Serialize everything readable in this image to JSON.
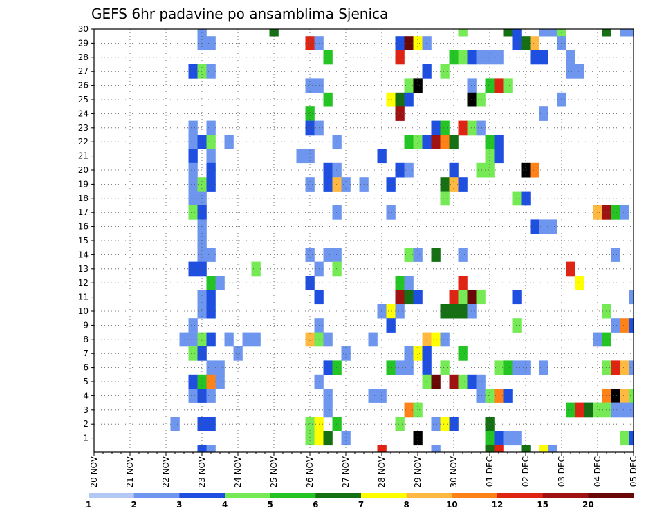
{
  "chart_data": {
    "type": "heatmap",
    "title": "GEFS 6hr padavine po ansamblima Sjenica",
    "x_tick_labels": [
      "20 NOV",
      "21 NOV",
      "22 NOV",
      "23 NOV",
      "24 NOV",
      "25 NOV",
      "26 NOV",
      "27 NOV",
      "28 NOV",
      "29 NOV",
      "30 NOV",
      "01 DEC",
      "02 DEC",
      "03 DEC",
      "04 DEC",
      "05 DEC"
    ],
    "y_tick_labels": [
      "1",
      "2",
      "3",
      "4",
      "5",
      "6",
      "7",
      "8",
      "9",
      "10",
      "11",
      "12",
      "13",
      "14",
      "15",
      "16",
      "17",
      "18",
      "19",
      "20",
      "21",
      "22",
      "23",
      "24",
      "25",
      "26",
      "27",
      "28",
      "29",
      "30"
    ],
    "n_time_steps": 61,
    "n_members": 31,
    "grid": true,
    "legend": "colorbar-bottom",
    "colorbar": {
      "labels": [
        "1",
        "2",
        "3",
        "4",
        "5",
        "6",
        "7",
        "8",
        "10",
        "12",
        "15",
        "20"
      ],
      "colors": [
        "#b4c8f5",
        "#6e96ee",
        "#1f4fe0",
        "#76ea55",
        "#23c423",
        "#157014",
        "#ffff00",
        "#ffb840",
        "#ff8218",
        "#e02414",
        "#a01212",
        "#6a0808"
      ]
    },
    "cells": [
      [
        12,
        30,
        1
      ],
      [
        20,
        30,
        5
      ],
      [
        41,
        30,
        3
      ],
      [
        46,
        30,
        5
      ],
      [
        47,
        30,
        2
      ],
      [
        50,
        30,
        1
      ],
      [
        51,
        30,
        1
      ],
      [
        52,
        30,
        3
      ],
      [
        57,
        30,
        5
      ],
      [
        59,
        30,
        1
      ],
      [
        60,
        30,
        1
      ],
      [
        12,
        29,
        1
      ],
      [
        13,
        29,
        1
      ],
      [
        24,
        29,
        9
      ],
      [
        25,
        29,
        1
      ],
      [
        34,
        29,
        2
      ],
      [
        35,
        29,
        11
      ],
      [
        36,
        29,
        6
      ],
      [
        37,
        29,
        1
      ],
      [
        47,
        29,
        2
      ],
      [
        48,
        29,
        5
      ],
      [
        49,
        29,
        7
      ],
      [
        52,
        29,
        1
      ],
      [
        26,
        28,
        4
      ],
      [
        34,
        28,
        9
      ],
      [
        40,
        28,
        4
      ],
      [
        41,
        28,
        3
      ],
      [
        42,
        28,
        2
      ],
      [
        43,
        28,
        1
      ],
      [
        44,
        28,
        1
      ],
      [
        45,
        28,
        1
      ],
      [
        49,
        28,
        2
      ],
      [
        50,
        28,
        2
      ],
      [
        53,
        28,
        1
      ],
      [
        11,
        27,
        2
      ],
      [
        12,
        27,
        3
      ],
      [
        13,
        27,
        1
      ],
      [
        37,
        27,
        2
      ],
      [
        39,
        27,
        3
      ],
      [
        53,
        27,
        1
      ],
      [
        54,
        27,
        1
      ],
      [
        24,
        26,
        1
      ],
      [
        25,
        26,
        1
      ],
      [
        35,
        26,
        3
      ],
      [
        36,
        26,
        12
      ],
      [
        42,
        26,
        1
      ],
      [
        44,
        26,
        4
      ],
      [
        45,
        26,
        9
      ],
      [
        46,
        26,
        3
      ],
      [
        26,
        25,
        4
      ],
      [
        33,
        25,
        6
      ],
      [
        34,
        25,
        5
      ],
      [
        35,
        25,
        2
      ],
      [
        42,
        25,
        12
      ],
      [
        43,
        25,
        3
      ],
      [
        52,
        25,
        1
      ],
      [
        24,
        24,
        4
      ],
      [
        34,
        24,
        10
      ],
      [
        50,
        24,
        1
      ],
      [
        11,
        23,
        1
      ],
      [
        13,
        23,
        1
      ],
      [
        24,
        23,
        2
      ],
      [
        25,
        23,
        1
      ],
      [
        38,
        23,
        2
      ],
      [
        39,
        23,
        4
      ],
      [
        41,
        23,
        9
      ],
      [
        42,
        23,
        3
      ],
      [
        43,
        23,
        1
      ],
      [
        11,
        22,
        1
      ],
      [
        12,
        22,
        2
      ],
      [
        13,
        22,
        3
      ],
      [
        15,
        22,
        1
      ],
      [
        27,
        22,
        1
      ],
      [
        35,
        22,
        4
      ],
      [
        36,
        22,
        3
      ],
      [
        37,
        22,
        2
      ],
      [
        38,
        22,
        10
      ],
      [
        39,
        22,
        8
      ],
      [
        40,
        22,
        5
      ],
      [
        44,
        22,
        4
      ],
      [
        45,
        22,
        2
      ],
      [
        11,
        21,
        2
      ],
      [
        13,
        21,
        1
      ],
      [
        23,
        21,
        1
      ],
      [
        24,
        21,
        1
      ],
      [
        32,
        21,
        2
      ],
      [
        44,
        21,
        3
      ],
      [
        45,
        21,
        2
      ],
      [
        11,
        20,
        1
      ],
      [
        13,
        20,
        2
      ],
      [
        26,
        20,
        2
      ],
      [
        27,
        20,
        1
      ],
      [
        34,
        20,
        2
      ],
      [
        35,
        20,
        1
      ],
      [
        40,
        20,
        2
      ],
      [
        43,
        20,
        3
      ],
      [
        44,
        20,
        3
      ],
      [
        48,
        20,
        12
      ],
      [
        49,
        20,
        8
      ],
      [
        11,
        19,
        1
      ],
      [
        12,
        19,
        3
      ],
      [
        13,
        19,
        2
      ],
      [
        24,
        19,
        1
      ],
      [
        26,
        19,
        2
      ],
      [
        27,
        19,
        7
      ],
      [
        28,
        19,
        1
      ],
      [
        30,
        19,
        1
      ],
      [
        33,
        19,
        2
      ],
      [
        39,
        19,
        5
      ],
      [
        40,
        19,
        7
      ],
      [
        41,
        19,
        2
      ],
      [
        11,
        18,
        1
      ],
      [
        12,
        18,
        1
      ],
      [
        39,
        18,
        3
      ],
      [
        47,
        18,
        3
      ],
      [
        48,
        18,
        2
      ],
      [
        11,
        17,
        3
      ],
      [
        12,
        17,
        2
      ],
      [
        27,
        17,
        1
      ],
      [
        33,
        17,
        1
      ],
      [
        56,
        17,
        7
      ],
      [
        57,
        17,
        10
      ],
      [
        58,
        17,
        4
      ],
      [
        59,
        17,
        1
      ],
      [
        12,
        16,
        1
      ],
      [
        49,
        16,
        2
      ],
      [
        50,
        16,
        1
      ],
      [
        51,
        16,
        1
      ],
      [
        12,
        15,
        1
      ],
      [
        12,
        14,
        1
      ],
      [
        13,
        14,
        1
      ],
      [
        24,
        14,
        1
      ],
      [
        26,
        14,
        1
      ],
      [
        27,
        14,
        1
      ],
      [
        35,
        14,
        3
      ],
      [
        36,
        14,
        1
      ],
      [
        38,
        14,
        5
      ],
      [
        41,
        14,
        1
      ],
      [
        58,
        14,
        1
      ],
      [
        11,
        13,
        2
      ],
      [
        12,
        13,
        2
      ],
      [
        18,
        13,
        3
      ],
      [
        25,
        13,
        1
      ],
      [
        27,
        13,
        3
      ],
      [
        53,
        13,
        9
      ],
      [
        13,
        12,
        4
      ],
      [
        14,
        12,
        1
      ],
      [
        24,
        12,
        2
      ],
      [
        34,
        12,
        4
      ],
      [
        35,
        12,
        1
      ],
      [
        41,
        12,
        9
      ],
      [
        54,
        12,
        6
      ],
      [
        12,
        11,
        1
      ],
      [
        13,
        11,
        2
      ],
      [
        25,
        11,
        2
      ],
      [
        34,
        11,
        10
      ],
      [
        35,
        11,
        5
      ],
      [
        36,
        11,
        2
      ],
      [
        40,
        11,
        9
      ],
      [
        41,
        11,
        3
      ],
      [
        42,
        11,
        11
      ],
      [
        43,
        11,
        3
      ],
      [
        47,
        11,
        2
      ],
      [
        60,
        11,
        1
      ],
      [
        12,
        10,
        1
      ],
      [
        13,
        10,
        2
      ],
      [
        32,
        10,
        1
      ],
      [
        33,
        10,
        6
      ],
      [
        34,
        10,
        1
      ],
      [
        39,
        10,
        5
      ],
      [
        40,
        10,
        5
      ],
      [
        41,
        10,
        5
      ],
      [
        42,
        10,
        1
      ],
      [
        57,
        10,
        3
      ],
      [
        11,
        9,
        1
      ],
      [
        25,
        9,
        1
      ],
      [
        33,
        9,
        2
      ],
      [
        47,
        9,
        3
      ],
      [
        58,
        9,
        1
      ],
      [
        59,
        9,
        8
      ],
      [
        60,
        9,
        2
      ],
      [
        10,
        8,
        1
      ],
      [
        11,
        8,
        1
      ],
      [
        12,
        8,
        3
      ],
      [
        13,
        8,
        2
      ],
      [
        15,
        8,
        1
      ],
      [
        17,
        8,
        1
      ],
      [
        18,
        8,
        1
      ],
      [
        24,
        8,
        7
      ],
      [
        25,
        8,
        3
      ],
      [
        26,
        8,
        1
      ],
      [
        31,
        8,
        1
      ],
      [
        37,
        8,
        7
      ],
      [
        38,
        8,
        6
      ],
      [
        39,
        8,
        1
      ],
      [
        56,
        8,
        1
      ],
      [
        57,
        8,
        4
      ],
      [
        11,
        7,
        3
      ],
      [
        12,
        7,
        2
      ],
      [
        16,
        7,
        1
      ],
      [
        28,
        7,
        1
      ],
      [
        35,
        7,
        1
      ],
      [
        36,
        7,
        6
      ],
      [
        37,
        7,
        2
      ],
      [
        41,
        7,
        4
      ],
      [
        13,
        6,
        1
      ],
      [
        14,
        6,
        1
      ],
      [
        26,
        6,
        2
      ],
      [
        27,
        6,
        4
      ],
      [
        33,
        6,
        4
      ],
      [
        34,
        6,
        1
      ],
      [
        35,
        6,
        1
      ],
      [
        37,
        6,
        2
      ],
      [
        39,
        6,
        3
      ],
      [
        45,
        6,
        3
      ],
      [
        46,
        6,
        4
      ],
      [
        47,
        6,
        1
      ],
      [
        48,
        6,
        1
      ],
      [
        50,
        6,
        1
      ],
      [
        57,
        6,
        3
      ],
      [
        58,
        6,
        9
      ],
      [
        59,
        6,
        7
      ],
      [
        60,
        6,
        1
      ],
      [
        11,
        5,
        2
      ],
      [
        12,
        5,
        4
      ],
      [
        13,
        5,
        8
      ],
      [
        14,
        5,
        1
      ],
      [
        25,
        5,
        1
      ],
      [
        37,
        5,
        3
      ],
      [
        38,
        5,
        11
      ],
      [
        40,
        5,
        10
      ],
      [
        41,
        5,
        3
      ],
      [
        42,
        5,
        2
      ],
      [
        43,
        5,
        1
      ],
      [
        11,
        4,
        1
      ],
      [
        12,
        4,
        2
      ],
      [
        13,
        4,
        1
      ],
      [
        26,
        4,
        1
      ],
      [
        31,
        4,
        1
      ],
      [
        32,
        4,
        1
      ],
      [
        43,
        4,
        1
      ],
      [
        44,
        4,
        3
      ],
      [
        45,
        4,
        8
      ],
      [
        46,
        4,
        2
      ],
      [
        57,
        4,
        8
      ],
      [
        58,
        4,
        12
      ],
      [
        59,
        4,
        7
      ],
      [
        60,
        4,
        3
      ],
      [
        26,
        3,
        1
      ],
      [
        35,
        3,
        8
      ],
      [
        36,
        3,
        3
      ],
      [
        53,
        3,
        4
      ],
      [
        54,
        3,
        9
      ],
      [
        55,
        3,
        5
      ],
      [
        56,
        3,
        3
      ],
      [
        57,
        3,
        3
      ],
      [
        58,
        3,
        1
      ],
      [
        59,
        3,
        1
      ],
      [
        60,
        3,
        1
      ],
      [
        9,
        2,
        1
      ],
      [
        12,
        2,
        2
      ],
      [
        13,
        2,
        2
      ],
      [
        24,
        2,
        3
      ],
      [
        25,
        2,
        6
      ],
      [
        27,
        2,
        4
      ],
      [
        34,
        2,
        3
      ],
      [
        38,
        2,
        1
      ],
      [
        39,
        2,
        6
      ],
      [
        40,
        2,
        2
      ],
      [
        44,
        2,
        5
      ],
      [
        24,
        1,
        3
      ],
      [
        25,
        1,
        6
      ],
      [
        26,
        1,
        5
      ],
      [
        28,
        1,
        1
      ],
      [
        36,
        1,
        12
      ],
      [
        44,
        1,
        4
      ],
      [
        45,
        1,
        2
      ],
      [
        46,
        1,
        1
      ],
      [
        47,
        1,
        1
      ],
      [
        59,
        1,
        3
      ],
      [
        60,
        1,
        2
      ],
      [
        12,
        0,
        2
      ],
      [
        13,
        0,
        1
      ],
      [
        32,
        0,
        9
      ],
      [
        38,
        0,
        1
      ],
      [
        44,
        0,
        5
      ],
      [
        45,
        0,
        9
      ],
      [
        48,
        0,
        5
      ],
      [
        50,
        0,
        6
      ],
      [
        51,
        0,
        1
      ]
    ]
  }
}
